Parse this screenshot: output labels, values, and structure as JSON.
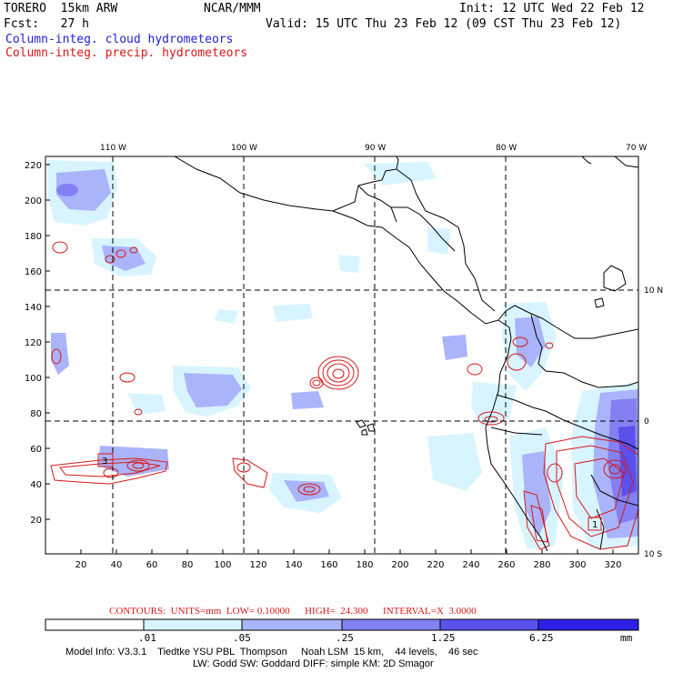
{
  "header": {
    "model": "TORERO  15km ARW",
    "center": "NCAR/MMM",
    "init": "Init: 12 UTC Wed 22 Feb 12",
    "fcst": "Fcst:   27 h",
    "valid": "Valid: 15 UTC Thu 23 Feb 12 (09 CST Thu 23 Feb 12)",
    "field1": "Column-integ. cloud hydrometeors",
    "field2": "Column-integ. precip. hydrometeors",
    "field1_color": "#1f1fd6",
    "field2_color": "#d81818"
  },
  "map": {
    "lon_labels": [
      "110 W",
      "100 W",
      "90 W",
      "80 W",
      "70 W"
    ],
    "lat_labels": [
      "10 N",
      "0",
      "10 S"
    ],
    "y_ticks": [
      "220",
      "200",
      "180",
      "160",
      "140",
      "120",
      "100",
      "80",
      "60",
      "40",
      "20"
    ],
    "x_ticks": [
      "20",
      "40",
      "60",
      "80",
      "100",
      "120",
      "140",
      "160",
      "180",
      "200",
      "220",
      "240",
      "260",
      "280",
      "300",
      "320"
    ],
    "box_labels": [
      "3",
      "1"
    ]
  },
  "contours": {
    "label": "CONTOURS:  UNITS=mm  LOW= 0.10000      HIGH=  24.300      INTERVAL=X  3.0000",
    "color": "#d81818"
  },
  "colorbar": {
    "labels": [
      ".01",
      ".05",
      ".25",
      "1.25",
      "6.25"
    ],
    "units": "mm",
    "colors": [
      "#ffffff",
      "#d8f4ff",
      "#aab4fa",
      "#8280f2",
      "#5a50ec",
      "#2f22e8"
    ]
  },
  "footer": {
    "line1": "Model Info: V3.3.1    Tiedtke YSU PBL  Thompson     Noah LSM  15 km,    44 levels,    46 sec",
    "line2": "LW: Godd SW: Goddard DIFF: simple KM: 2D Smagor"
  }
}
